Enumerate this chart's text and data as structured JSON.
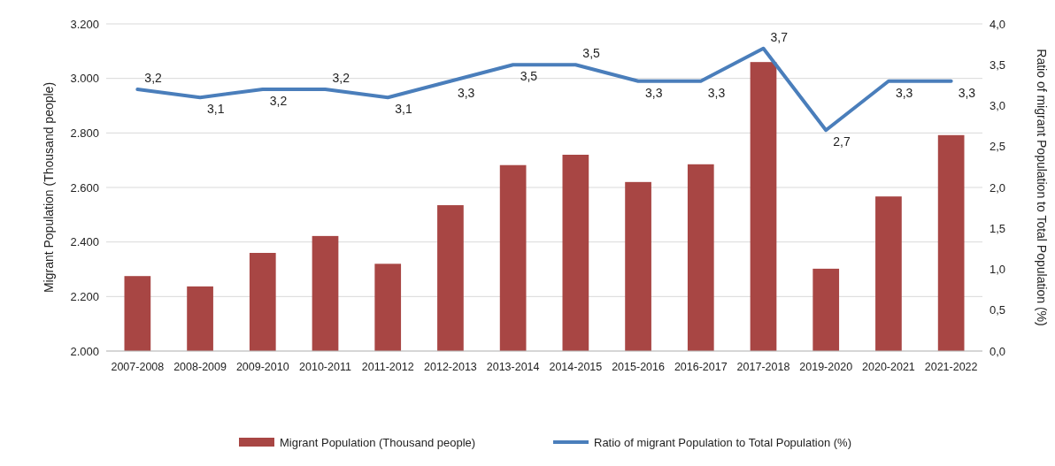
{
  "chart_data": {
    "type": "bar",
    "ylabel": "Migrant Population (Thousand people)",
    "y2label": "Ratio of migrant Population to Total Population (%)",
    "categories": [
      "2007-2008",
      "2008-2009",
      "2009-2010",
      "2010-2011",
      "2011-2012",
      "2012-2013",
      "2013-2014",
      "2014-2015",
      "2015-2016",
      "2016-2017",
      "2017-2018",
      "2019-2020",
      "2020-2021",
      "2021-2022"
    ],
    "series": [
      {
        "name": "Migrant Population (Thousand people)",
        "color": "#a84644",
        "values": [
          2275,
          2237,
          2360,
          2422,
          2320,
          2535,
          2682,
          2720,
          2620,
          2685,
          3060,
          2302,
          2567,
          2792
        ]
      },
      {
        "name": "Ratio of migrant Population to Total Population (%)",
        "type": "line",
        "axis": "y2",
        "color": "#4a7ebb",
        "values": [
          3.2,
          3.1,
          3.2,
          3.2,
          3.1,
          3.3,
          3.5,
          3.5,
          3.3,
          3.3,
          3.7,
          2.7,
          3.3,
          3.3
        ],
        "value_labels": [
          "3,2",
          "3,1",
          "3,2",
          "3,2",
          "3,1",
          "3,3",
          "3,5",
          "3,5",
          "3,3",
          "3,3",
          "3,7",
          "2,7",
          "3,3",
          "3,3"
        ]
      }
    ],
    "ylim": [
      2000,
      3200
    ],
    "yticks": [
      {
        "value": 2000,
        "label": "2.000"
      },
      {
        "value": 2200,
        "label": "2.200"
      },
      {
        "value": 2400,
        "label": "2.400"
      },
      {
        "value": 2600,
        "label": "2.600"
      },
      {
        "value": 2800,
        "label": "2.800"
      },
      {
        "value": 3000,
        "label": "3.000"
      },
      {
        "value": 3200,
        "label": "3.200"
      }
    ],
    "y2lim": [
      0,
      4
    ],
    "y2ticks": [
      {
        "value": 0,
        "label": "0,0"
      },
      {
        "value": 0.5,
        "label": "0,5"
      },
      {
        "value": 1,
        "label": "1,0"
      },
      {
        "value": 1.5,
        "label": "1,5"
      },
      {
        "value": 2,
        "label": "2,0"
      },
      {
        "value": 2.5,
        "label": "2,5"
      },
      {
        "value": 3,
        "label": "3,0"
      },
      {
        "value": 3.5,
        "label": "3,5"
      },
      {
        "value": 4,
        "label": "4,0"
      }
    ],
    "grid": "y",
    "legend": "bottom",
    "line_style": "solid",
    "marker": "none"
  }
}
